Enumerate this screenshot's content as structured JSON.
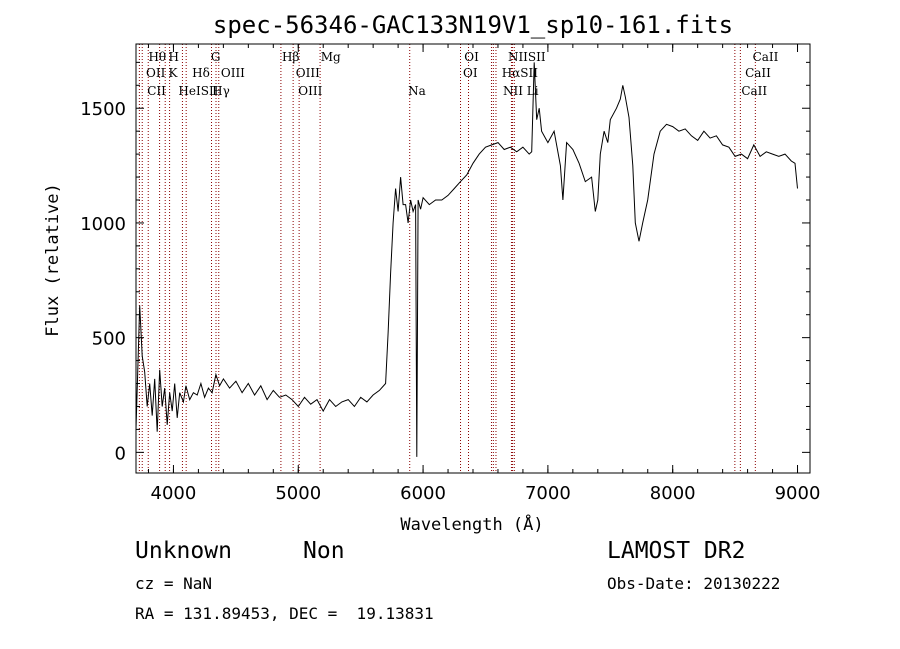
{
  "chart_data": {
    "type": "line",
    "title": "spec-56346-GAC133N19V1_sp10-161.fits",
    "xlabel": "Wavelength (Å)",
    "ylabel": "Flux (relative)",
    "xlim": [
      3700,
      9100
    ],
    "ylim": [
      -90,
      1780
    ],
    "xticks": [
      4000,
      5000,
      6000,
      7000,
      8000,
      9000
    ],
    "yticks": [
      0,
      500,
      1000,
      1500
    ],
    "grid": false,
    "line_color": "#000000",
    "marker_color": "#8b0000",
    "series": [
      {
        "x": [
          3700,
          3730,
          3750,
          3770,
          3790,
          3810,
          3830,
          3850,
          3870,
          3890,
          3910,
          3930,
          3950,
          3970,
          3990,
          4010,
          4030,
          4050,
          4080,
          4100,
          4130,
          4160,
          4190,
          4220,
          4250,
          4280,
          4310,
          4340,
          4370,
          4400,
          4450,
          4500,
          4550,
          4600,
          4650,
          4700,
          4750,
          4800,
          4850,
          4900,
          4950,
          5000,
          5050,
          5100,
          5150,
          5200,
          5250,
          5300,
          5350,
          5400,
          5450,
          5500,
          5550,
          5600,
          5650,
          5700,
          5720,
          5740,
          5760,
          5780,
          5800,
          5820,
          5840,
          5860,
          5880,
          5900,
          5920,
          5940,
          5950,
          5960,
          5980,
          6000,
          6050,
          6100,
          6150,
          6200,
          6250,
          6300,
          6350,
          6400,
          6450,
          6500,
          6550,
          6600,
          6650,
          6700,
          6750,
          6800,
          6850,
          6870,
          6890,
          6910,
          6930,
          6950,
          6980,
          7000,
          7050,
          7100,
          7120,
          7150,
          7200,
          7250,
          7300,
          7350,
          7380,
          7400,
          7420,
          7450,
          7480,
          7500,
          7550,
          7580,
          7600,
          7620,
          7650,
          7680,
          7700,
          7730,
          7760,
          7800,
          7850,
          7900,
          7950,
          8000,
          8050,
          8100,
          8150,
          8200,
          8250,
          8300,
          8350,
          8400,
          8450,
          8500,
          8550,
          8600,
          8650,
          8700,
          8750,
          8800,
          8850,
          8900,
          8950,
          8980,
          9000
        ],
        "y": [
          100,
          640,
          420,
          350,
          200,
          300,
          160,
          320,
          90,
          360,
          200,
          280,
          120,
          260,
          180,
          300,
          150,
          260,
          220,
          290,
          230,
          260,
          250,
          300,
          240,
          280,
          260,
          340,
          290,
          320,
          280,
          310,
          260,
          300,
          250,
          290,
          230,
          270,
          240,
          250,
          230,
          200,
          240,
          210,
          230,
          180,
          230,
          200,
          220,
          230,
          200,
          240,
          220,
          250,
          270,
          300,
          520,
          780,
          1000,
          1150,
          1050,
          1200,
          1080,
          1080,
          1000,
          1100,
          1050,
          1080,
          -20,
          1100,
          1060,
          1110,
          1080,
          1100,
          1100,
          1120,
          1150,
          1180,
          1210,
          1260,
          1300,
          1330,
          1340,
          1350,
          1320,
          1330,
          1310,
          1330,
          1300,
          1310,
          1700,
          1450,
          1500,
          1400,
          1370,
          1350,
          1400,
          1250,
          1100,
          1350,
          1320,
          1260,
          1180,
          1200,
          1050,
          1100,
          1300,
          1400,
          1350,
          1450,
          1500,
          1540,
          1600,
          1550,
          1460,
          1250,
          1000,
          920,
          1000,
          1100,
          1300,
          1400,
          1430,
          1420,
          1400,
          1410,
          1380,
          1360,
          1400,
          1370,
          1380,
          1340,
          1330,
          1290,
          1300,
          1280,
          1340,
          1290,
          1310,
          1300,
          1290,
          1300,
          1270,
          1260,
          1150
        ]
      }
    ],
    "lines": [
      {
        "x": 3727,
        "label": "OII"
      },
      {
        "x": 3750,
        "label": "CII"
      },
      {
        "x": 3798,
        "label": "Hθ"
      },
      {
        "x": 3889,
        "label": "HeI"
      },
      {
        "x": 3934,
        "label": "K"
      },
      {
        "x": 3969,
        "label": "H"
      },
      {
        "x": 4072,
        "label": "SII"
      },
      {
        "x": 4102,
        "label": "Hδ"
      },
      {
        "x": 4305,
        "label": "G"
      },
      {
        "x": 4341,
        "label": "Hγ"
      },
      {
        "x": 4363,
        "label": "OIII"
      },
      {
        "x": 4861,
        "label": "Hβ"
      },
      {
        "x": 4959,
        "label": "OIII"
      },
      {
        "x": 5007,
        "label": "OIII"
      },
      {
        "x": 5175,
        "label": "Mg"
      },
      {
        "x": 5893,
        "label": "Na"
      },
      {
        "x": 6300,
        "label": "OI"
      },
      {
        "x": 6364,
        "label": "OI"
      },
      {
        "x": 6548,
        "label": "NII"
      },
      {
        "x": 6563,
        "label": "Hα"
      },
      {
        "x": 6584,
        "label": "NII"
      },
      {
        "x": 6708,
        "label": "Li"
      },
      {
        "x": 6717,
        "label": "SII"
      },
      {
        "x": 6731,
        "label": "SII"
      },
      {
        "x": 8498,
        "label": "CaII"
      },
      {
        "x": 8542,
        "label": "CaII"
      },
      {
        "x": 8662,
        "label": "CaII"
      }
    ],
    "line_label_rows": [
      [
        "Hθ",
        "H",
        "G",
        "Hβ",
        "Mg",
        "OI",
        "NIISII",
        "CaII"
      ],
      [
        "OII",
        "K",
        "Hδ",
        "OIII",
        "OIII",
        "OI",
        "HαSII",
        "CaII"
      ],
      [
        "CII",
        "HeISII",
        "Hγ",
        "OIII",
        "Na",
        "NII Li",
        "CaII"
      ]
    ]
  },
  "info": {
    "object_class": "Unknown",
    "subclass": "Non",
    "survey": "LAMOST DR2",
    "cz": "cz = NaN",
    "obs_date": "Obs-Date: 20130222",
    "coords": "RA = 131.89453, DEC =  19.13831"
  }
}
